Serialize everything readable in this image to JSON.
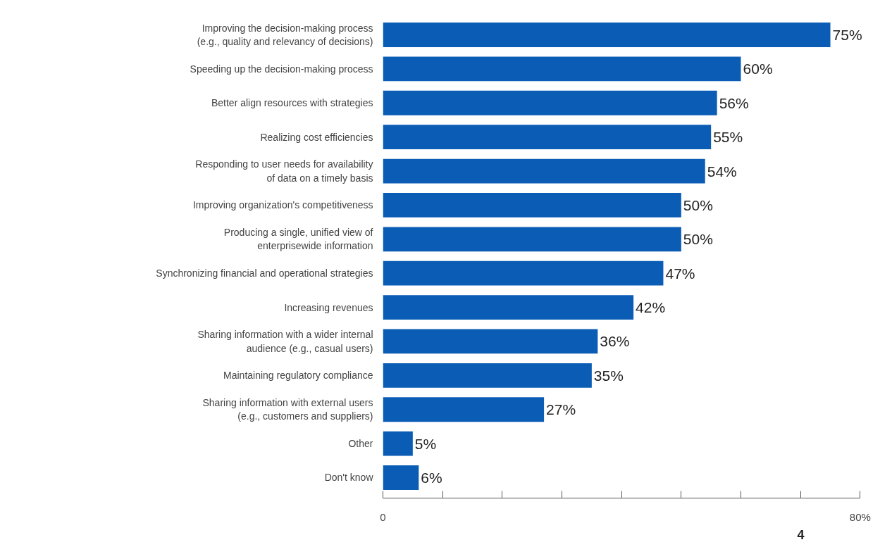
{
  "chart_data": {
    "type": "bar",
    "orientation": "horizontal",
    "categories": [
      "Improving the decision-making process\n(e.g., quality and relevancy of decisions)",
      "Speeding up the decision-making process",
      "Better align resources with strategies",
      "Realizing cost efficiencies",
      "Responding to user needs for availability\nof data on a timely basis",
      "Improving organization's competitiveness",
      "Producing a single, unified view of\nenterprisewide information",
      "Synchronizing financial and operational strategies",
      "Increasing revenues",
      "Sharing information with a wider internal\naudience (e.g., casual users)",
      "Maintaining regulatory compliance",
      "Sharing information with external users\n(e.g., customers and suppliers)",
      "Other",
      "Don't know"
    ],
    "values": [
      75,
      60,
      56,
      55,
      54,
      50,
      50,
      47,
      42,
      36,
      35,
      27,
      5,
      6
    ],
    "value_labels": [
      "75%",
      "60%",
      "56%",
      "55%",
      "54%",
      "50%",
      "50%",
      "47%",
      "42%",
      "36%",
      "35%",
      "27%",
      "5%",
      "6%"
    ],
    "color": "#0b5cb5",
    "xlim": [
      0,
      80
    ],
    "xticks": [
      0,
      {
        "value": 10,
        "label": null
      },
      {
        "value": 20,
        "label": null
      },
      {
        "value": 30,
        "label": null
      },
      {
        "value": 40,
        "label": null
      },
      {
        "value": 50,
        "label": null
      },
      {
        "value": 60,
        "label": null
      },
      {
        "value": 70,
        "label": null
      },
      {
        "value": 80,
        "label": "80%"
      }
    ],
    "grid": false,
    "annotations": [
      "4"
    ]
  }
}
